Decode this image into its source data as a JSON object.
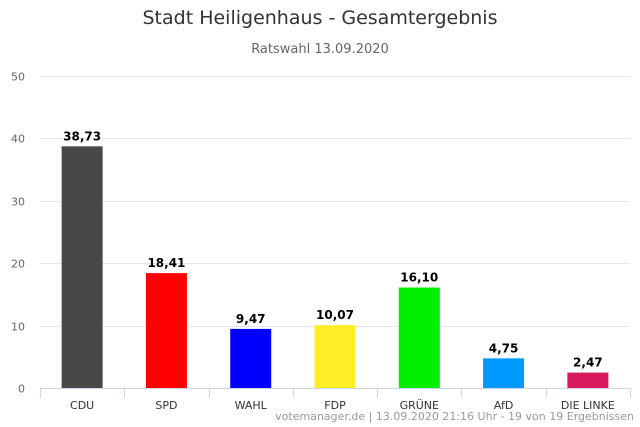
{
  "chart_data": {
    "type": "bar",
    "title": "Stadt Heiligenhaus - Gesamtergebnis",
    "subtitle": "Ratswahl 13.09.2020",
    "categories": [
      "CDU",
      "SPD",
      "WAHL",
      "FDP",
      "GRÜNE",
      "AfD",
      "DIE LINKE"
    ],
    "values": [
      38.73,
      18.41,
      9.47,
      10.07,
      16.1,
      4.75,
      2.47
    ],
    "data_labels": [
      "38,73",
      "18,41",
      "9,47",
      "10,07",
      "16,10",
      "4,75",
      "2,47"
    ],
    "colors": [
      "#484848",
      "#ff0000",
      "#0000ff",
      "#ffed27",
      "#00ee00",
      "#0099ff",
      "#d81b60"
    ],
    "ylim": [
      0,
      50
    ],
    "yticks": [
      0,
      10,
      20,
      30,
      40,
      50
    ],
    "grid": true,
    "xlabel": "",
    "ylabel": ""
  },
  "credits": "votemanager.de | 13.09.2020 21:16 Uhr - 19 von 19 Ergebnissen"
}
